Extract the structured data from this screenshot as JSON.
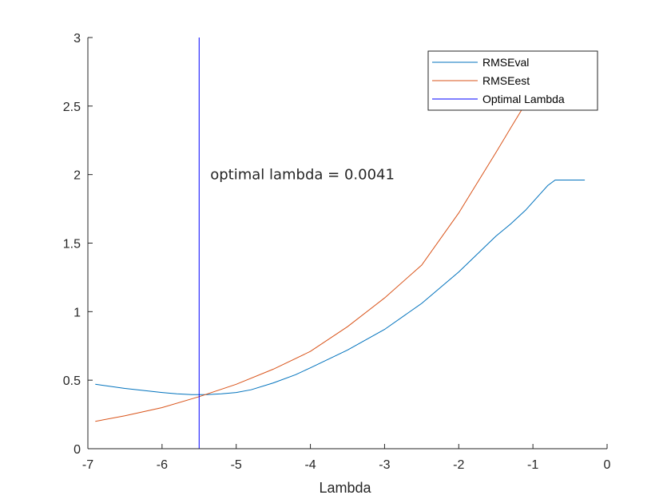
{
  "chart_data": {
    "type": "line",
    "xlabel": "Lambda",
    "ylabel": "",
    "xlim": [
      -7,
      0
    ],
    "ylim": [
      0,
      3
    ],
    "xticks": [
      "-7",
      "-6",
      "-5",
      "-4",
      "-3",
      "-2",
      "-1",
      "0"
    ],
    "yticks": [
      "0",
      "0.5",
      "1",
      "1.5",
      "2",
      "2.5",
      "3"
    ],
    "grid": false,
    "legend_position": "top-right",
    "series": [
      {
        "name": "RMSEval",
        "color": "#0072BD",
        "x": [
          -6.9,
          -6.5,
          -6.0,
          -5.8,
          -5.6,
          -5.4,
          -5.2,
          -5.0,
          -4.8,
          -4.5,
          -4.2,
          -4.0,
          -3.5,
          -3.0,
          -2.5,
          -2.0,
          -1.5,
          -1.3,
          -1.1,
          -0.9,
          -0.8,
          -0.7,
          -0.5,
          -0.3
        ],
        "y": [
          0.47,
          0.44,
          0.41,
          0.4,
          0.395,
          0.395,
          0.4,
          0.41,
          0.43,
          0.48,
          0.54,
          0.59,
          0.72,
          0.87,
          1.06,
          1.29,
          1.55,
          1.64,
          1.74,
          1.86,
          1.92,
          1.96,
          1.96,
          1.96
        ]
      },
      {
        "name": "RMSEest",
        "color": "#D95319",
        "x": [
          -6.9,
          -6.5,
          -6.0,
          -5.5,
          -5.0,
          -4.5,
          -4.0,
          -3.5,
          -3.0,
          -2.5,
          -2.0,
          -1.5,
          -1.3,
          -1.12
        ],
        "y": [
          0.2,
          0.24,
          0.3,
          0.38,
          0.47,
          0.58,
          0.71,
          0.89,
          1.1,
          1.34,
          1.72,
          2.16,
          2.34,
          2.5
        ]
      }
    ],
    "vertical_line": {
      "name": "Optimal Lambda",
      "x": -5.5,
      "color": "#0000FF"
    },
    "annotation": {
      "text": "optimal lambda = 0.0041",
      "x": -5.35,
      "y": 2.0
    }
  }
}
